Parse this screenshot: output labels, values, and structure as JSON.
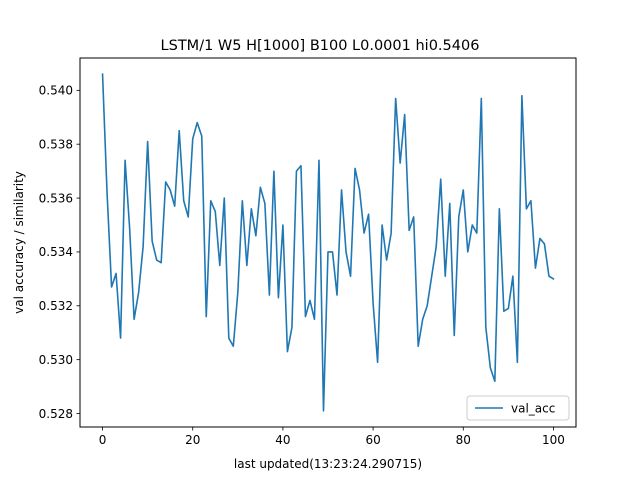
{
  "chart_data": {
    "type": "line",
    "title": "LSTM/1 W5 H[1000] B100 L0.0001 hi0.5406",
    "xlabel": "last updated(13:23:24.290715)",
    "ylabel": "val accuracy / similarity",
    "xlim": [
      -5,
      105
    ],
    "ylim": [
      0.5275,
      0.5412
    ],
    "xticks": [
      0,
      20,
      40,
      60,
      80,
      100
    ],
    "yticks": [
      0.528,
      0.53,
      0.532,
      0.534,
      0.536,
      0.538,
      0.54
    ],
    "grid": false,
    "legend_position": "lower-right",
    "series": [
      {
        "name": "val_acc",
        "color": "#1f77b4",
        "x": [
          0,
          1,
          2,
          3,
          4,
          5,
          6,
          7,
          8,
          9,
          10,
          11,
          12,
          13,
          14,
          15,
          16,
          17,
          18,
          19,
          20,
          21,
          22,
          23,
          24,
          25,
          26,
          27,
          28,
          29,
          30,
          31,
          32,
          33,
          34,
          35,
          36,
          37,
          38,
          39,
          40,
          41,
          42,
          43,
          44,
          45,
          46,
          47,
          48,
          49,
          50,
          51,
          52,
          53,
          54,
          55,
          56,
          57,
          58,
          59,
          60,
          61,
          62,
          63,
          64,
          65,
          66,
          67,
          68,
          69,
          70,
          71,
          72,
          73,
          74,
          75,
          76,
          77,
          78,
          79,
          80,
          81,
          82,
          83,
          84,
          85,
          86,
          87,
          88,
          89,
          90,
          91,
          92,
          93,
          94,
          95,
          96,
          97,
          98,
          99,
          100
        ],
        "y": [
          0.5406,
          0.5362,
          0.5327,
          0.5332,
          0.5308,
          0.5374,
          0.5349,
          0.5315,
          0.5325,
          0.5342,
          0.5381,
          0.5344,
          0.5337,
          0.5336,
          0.5366,
          0.5363,
          0.5357,
          0.5385,
          0.5359,
          0.5353,
          0.5382,
          0.5388,
          0.5383,
          0.5316,
          0.5359,
          0.5355,
          0.5335,
          0.536,
          0.5308,
          0.5305,
          0.5325,
          0.5359,
          0.5335,
          0.5356,
          0.5346,
          0.5364,
          0.5358,
          0.5324,
          0.537,
          0.5323,
          0.535,
          0.5303,
          0.5312,
          0.537,
          0.5372,
          0.5316,
          0.5322,
          0.5315,
          0.5374,
          0.5281,
          0.534,
          0.534,
          0.5324,
          0.5363,
          0.534,
          0.5331,
          0.5371,
          0.5363,
          0.5347,
          0.5354,
          0.5321,
          0.5299,
          0.535,
          0.5337,
          0.5347,
          0.5397,
          0.5373,
          0.5391,
          0.5348,
          0.5353,
          0.5305,
          0.5315,
          0.532,
          0.5331,
          0.5342,
          0.5367,
          0.5331,
          0.5358,
          0.5309,
          0.5353,
          0.5363,
          0.534,
          0.535,
          0.5347,
          0.5397,
          0.5312,
          0.5297,
          0.5292,
          0.5356,
          0.5318,
          0.5319,
          0.5331,
          0.5299,
          0.5398,
          0.5356,
          0.5359,
          0.5334,
          0.5345,
          0.5343,
          0.5331,
          0.533
        ]
      }
    ]
  }
}
